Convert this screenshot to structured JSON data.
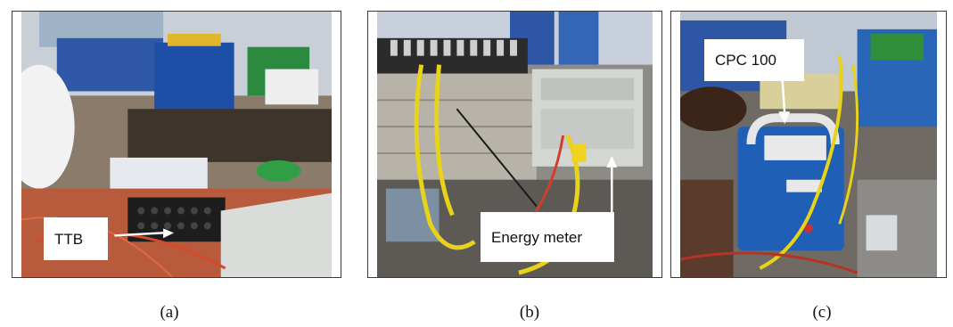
{
  "panels": [
    {
      "label": "TTB",
      "caption": "(a)"
    },
    {
      "label": "Energy meter",
      "caption": "(b)"
    },
    {
      "label": "CPC 100",
      "caption": "(c)"
    }
  ],
  "colors": {
    "cable_yellow": "#e8d21a",
    "device_blue": "#1f5fb5",
    "meter_grey": "#d4d6d2"
  }
}
